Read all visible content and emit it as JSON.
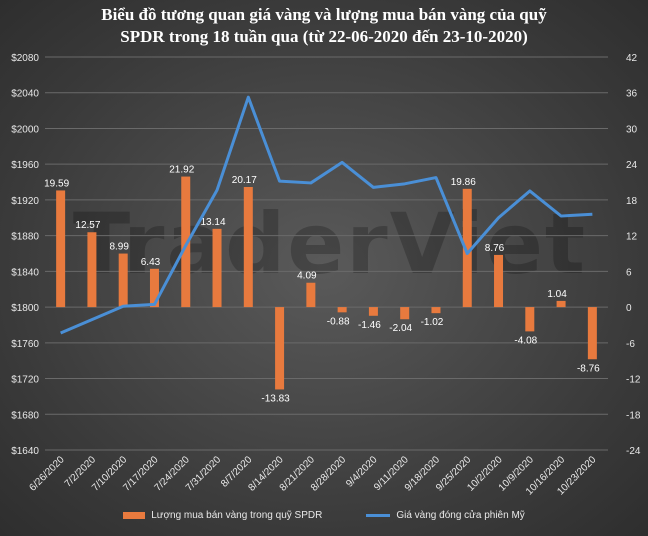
{
  "chart_data": {
    "type": "bar+line",
    "title_line1": "Biểu đồ tương quan giá vàng và lượng mua bán vàng của quỹ",
    "title_line2": "SPDR trong 18 tuần qua (từ 22-06-2020 đến 23-10-2020)",
    "watermark": "TraderViet",
    "categories": [
      "6/26/2020",
      "7/2/2020",
      "7/10/2020",
      "7/17/2020",
      "7/24/2020",
      "7/31/2020",
      "8/7/2020",
      "8/14/2020",
      "8/21/2020",
      "8/28/2020",
      "9/4/2020",
      "9/11/2020",
      "9/18/2020",
      "9/25/2020",
      "10/2/2020",
      "10/9/2020",
      "10/16/2020",
      "10/23/2020"
    ],
    "series": [
      {
        "name": "Lượng mua bán vàng trong quỹ SPDR",
        "type": "bar",
        "axis": "right",
        "color": "#e87a3e",
        "values": [
          19.59,
          12.57,
          8.99,
          6.43,
          21.92,
          13.14,
          20.17,
          -13.83,
          4.09,
          -0.88,
          -1.46,
          -2.04,
          -1.02,
          19.86,
          8.76,
          -4.08,
          1.04,
          -8.76
        ],
        "labels": [
          "19.59",
          "12.57",
          "8.99",
          "6.43",
          "21.92",
          "13.14",
          "20.17",
          "-13.83",
          "4.09",
          "-0.88",
          "-1.46",
          "-2.04",
          "-1.02",
          "19.86",
          "8.76",
          "-4.08",
          "1.04",
          "-8.76"
        ]
      },
      {
        "name": "Giá vàng đóng cửa phiên Mỹ",
        "type": "line",
        "axis": "left",
        "color": "#4a8fd6",
        "values": [
          1771,
          1786,
          1801,
          1803,
          1869,
          1931,
          2035,
          1941,
          1939,
          1962,
          1934,
          1938,
          1945,
          1860,
          1900,
          1930,
          1902,
          1904
        ]
      }
    ],
    "left_axis": {
      "ylim": [
        1640,
        2080
      ],
      "ticks": [
        "$1640",
        "$1680",
        "$1720",
        "$1760",
        "$1800",
        "$1840",
        "$1880",
        "$1920",
        "$1960",
        "$2000",
        "$2040",
        "$2080"
      ]
    },
    "right_axis": {
      "ylim": [
        -24,
        42
      ],
      "ticks": [
        "-24",
        "-18",
        "-12",
        "-6",
        "0",
        "6",
        "12",
        "18",
        "24",
        "30",
        "36",
        "42"
      ]
    },
    "grid": true,
    "legend_position": "bottom"
  }
}
